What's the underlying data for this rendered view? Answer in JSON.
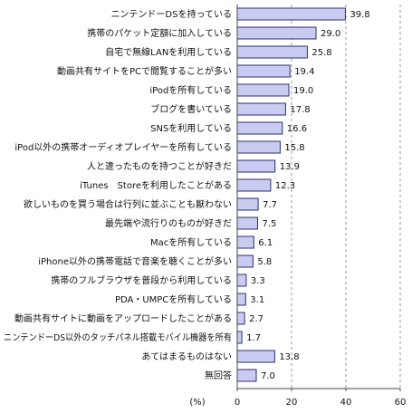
{
  "chart_data": {
    "type": "bar",
    "orientation": "horizontal",
    "categories": [
      "ニンテンドーDSを持っている",
      "携帯のパケット定額に加入している",
      "自宅で無線LANを利用している",
      "動画共有サイトをPCで閲覧することが多い",
      "iPodを所有している",
      "ブログを書いている",
      "SNSを利用している",
      "iPod以外の携帯オーディオプレイヤーを所有している",
      "人と違ったものを持つことが好きだ",
      "iTunes　Storeを利用したことがある",
      "欲しいものを買う場合は行列に並ぶことも厭わない",
      "最先端や流行りのものが好きだ",
      "Macを所有している",
      "iPhone以外の携帯電話で音楽を聴くことが多い",
      "携帯のフルブラウザを普段から利用している",
      "PDA・UMPCを所有している",
      "動画共有サイトに動画をアップロードしたことがある",
      "ニンテンドーDS以外のタッチパネル搭載モバイル機器を所有",
      "あてはまるものはない",
      "無回答"
    ],
    "values": [
      39.8,
      29.0,
      25.8,
      19.4,
      19.0,
      17.8,
      16.6,
      15.8,
      13.9,
      12.3,
      7.7,
      7.5,
      6.1,
      5.8,
      3.3,
      3.1,
      2.7,
      1.7,
      13.8,
      7.0
    ],
    "value_labels": [
      "39.8",
      "29.0",
      "25.8",
      "19.4",
      "19.0",
      "17.8",
      "16.6",
      "15.8",
      "13.9",
      "12.3",
      "7.7",
      "7.5",
      "6.1",
      "5.8",
      "3.3",
      "3.1",
      "2.7",
      "1.7",
      "13.8",
      "7.0"
    ],
    "x_ticks": [
      "0",
      "20",
      "40",
      "60"
    ],
    "x_tick_values": [
      0,
      20,
      40,
      60
    ],
    "xlim": [
      0,
      60
    ],
    "unit_label": "(%)",
    "gridlines": "vertical-dashed",
    "bar_fill": "#c9ccf0",
    "bar_stroke": "#2b2f6b"
  }
}
